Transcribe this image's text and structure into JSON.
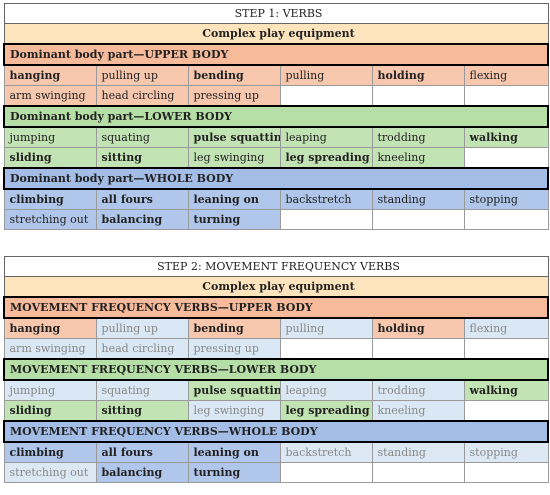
{
  "step1": {
    "title": "STEP 1: VERBS",
    "equipment": "Complex play equipment",
    "upper": {
      "header": "Dominant body part—UPPER BODY",
      "row1": [
        "hanging",
        "pulling up",
        "bending",
        "pulling",
        "holding",
        "flexing"
      ],
      "row2": [
        "arm swinging",
        "head circling",
        "pressing up",
        "",
        "",
        ""
      ]
    },
    "lower": {
      "header": "Dominant body part—LOWER BODY",
      "row1": [
        "jumping",
        "squating",
        "pulse squatting",
        "leaping",
        "trodding",
        "walking"
      ],
      "row2": [
        "sliding",
        "sitting",
        "leg swinging",
        "leg spreading",
        "kneeling",
        ""
      ]
    },
    "whole": {
      "header": "Dominant body part—WHOLE BODY",
      "row1": [
        "climbing",
        "all fours",
        "leaning on",
        "backstretch",
        "standing",
        "stopping"
      ],
      "row2": [
        "stretching out",
        "balancing",
        "turning",
        "",
        "",
        ""
      ]
    }
  },
  "step2": {
    "title": "STEP 2: MOVEMENT FREQUENCY VERBS",
    "equipment": "Complex play equipment",
    "upper": {
      "header": "MOVEMENT FREQUENCY VERBS—UPPER BODY",
      "row1": [
        "hanging",
        "pulling up",
        "bending",
        "pulling",
        "holding",
        "flexing"
      ],
      "row2": [
        "arm swinging",
        "head circling",
        "pressing up",
        "",
        "",
        ""
      ]
    },
    "lower": {
      "header": "MOVEMENT FREQUENCY VERBS—LOWER BODY",
      "row1": [
        "jumping",
        "squating",
        "pulse squatting",
        "leaping",
        "trodding",
        "walking"
      ],
      "row2": [
        "sliding",
        "sitting",
        "leg swinging",
        "leg spreading",
        "kneeling",
        ""
      ]
    },
    "whole": {
      "header": "MOVEMENT FREQUENCY VERBS—WHOLE BODY",
      "row1": [
        "climbing",
        "all fours",
        "leaning on",
        "backstretch",
        "standing",
        "stopping"
      ],
      "row2": [
        "stretching out",
        "balancing",
        "turning",
        "",
        "",
        ""
      ]
    }
  },
  "colors": {
    "upper_header": "#f7bb9b",
    "upper_cell": "#f8c8ae",
    "lower_header": "#b5dfa6",
    "lower_cell": "#c2e3b3",
    "whole_header": "#a4bde6",
    "whole_cell": "#b0c6ea",
    "faded_cell": "#d9e8f4",
    "equipment_band": "#fde4bd"
  }
}
